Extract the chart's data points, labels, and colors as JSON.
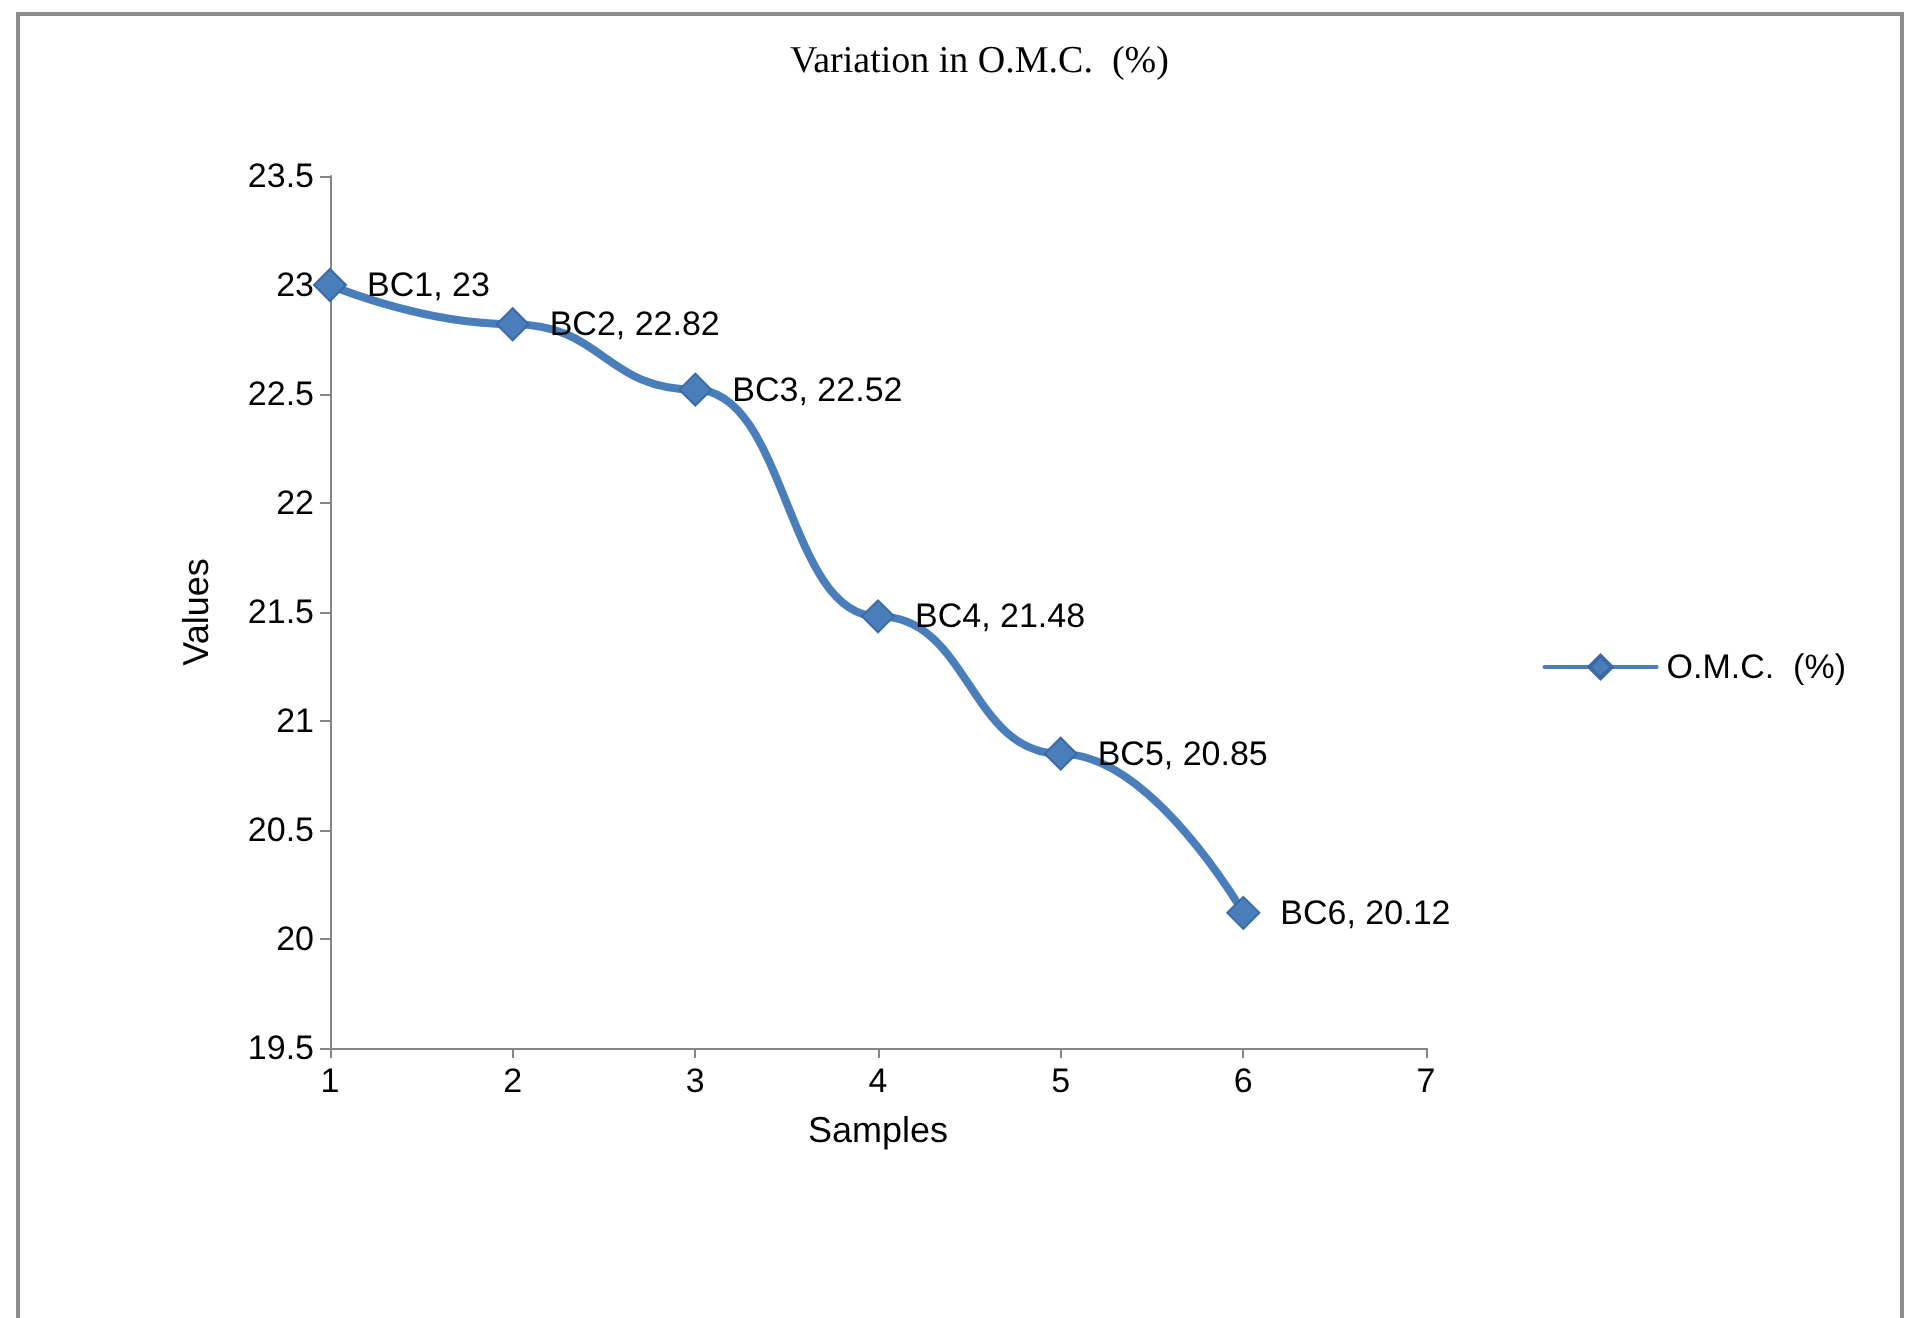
{
  "chart_data": {
    "type": "line",
    "title": "Variation in O.M.C.  (%)",
    "xlabel": "Samples",
    "ylabel": "Values",
    "x": [
      1,
      2,
      3,
      4,
      5,
      6
    ],
    "series": [
      {
        "name": "O.M.C.  (%)",
        "color": "#4a7ebb",
        "values": [
          23,
          22.82,
          22.52,
          21.48,
          20.85,
          20.12
        ],
        "value_labels": [
          "BC1, 23",
          "BC2, 22.82",
          "BC3, 22.52",
          "BC4, 21.48",
          "BC5, 20.85",
          "BC6, 20.12"
        ]
      }
    ],
    "xlim": [
      1,
      7
    ],
    "xticks": [
      1,
      2,
      3,
      4,
      5,
      6,
      7
    ],
    "ylim": [
      19.5,
      23.5
    ],
    "yticks": [
      19.5,
      20,
      20.5,
      21,
      21.5,
      22,
      22.5,
      23,
      23.5
    ],
    "grid": false,
    "legend": "right",
    "marker": "diamond",
    "line_style": "solid"
  }
}
